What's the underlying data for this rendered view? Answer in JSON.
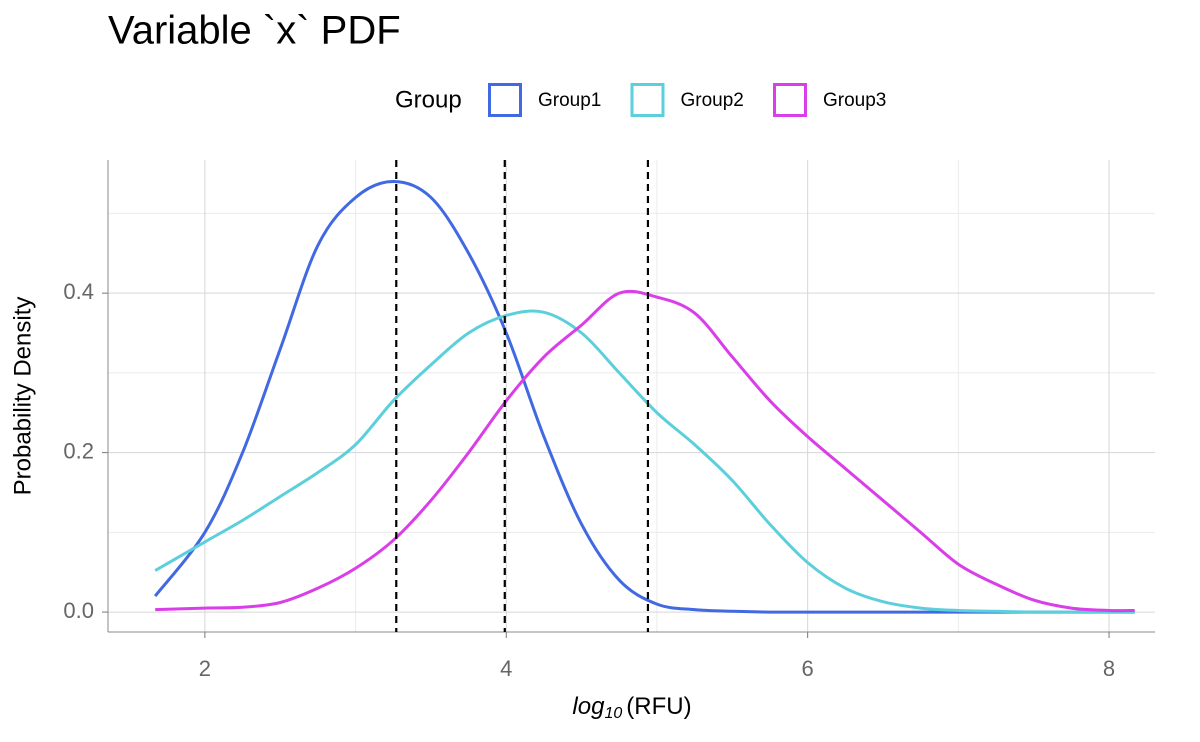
{
  "chart_data": {
    "type": "line",
    "title": "Variable `x` PDF",
    "xlabel": [
      "log",
      "10",
      "(RFU)"
    ],
    "ylabel": "Probability Density",
    "legend_title": "Group",
    "legend_position": "top",
    "x": [
      1.67,
      2.0,
      2.25,
      2.5,
      2.75,
      3.0,
      3.25,
      3.5,
      3.75,
      4.0,
      4.25,
      4.5,
      4.75,
      5.0,
      5.25,
      5.5,
      5.75,
      6.0,
      6.25,
      6.5,
      6.75,
      7.0,
      7.25,
      7.5,
      7.75,
      8.0,
      8.17
    ],
    "series": [
      {
        "name": "Group1",
        "color": "#4169e1",
        "values": [
          0.02,
          0.1,
          0.2,
          0.33,
          0.46,
          0.52,
          0.54,
          0.52,
          0.45,
          0.35,
          0.22,
          0.11,
          0.04,
          0.01,
          0.003,
          0.001,
          0,
          0,
          0,
          0,
          0,
          0,
          0,
          0,
          0,
          0,
          0
        ]
      },
      {
        "name": "Group2",
        "color": "#5bcfdb",
        "values": [
          0.052,
          0.088,
          0.115,
          0.145,
          0.175,
          0.21,
          0.265,
          0.31,
          0.35,
          0.372,
          0.376,
          0.35,
          0.3,
          0.25,
          0.21,
          0.165,
          0.11,
          0.062,
          0.03,
          0.013,
          0.005,
          0.002,
          0.001,
          0,
          0,
          0,
          0
        ]
      },
      {
        "name": "Group3",
        "color": "#d93ee8",
        "values": [
          0.003,
          0.005,
          0.006,
          0.012,
          0.03,
          0.055,
          0.09,
          0.14,
          0.2,
          0.265,
          0.32,
          0.36,
          0.4,
          0.395,
          0.375,
          0.32,
          0.265,
          0.22,
          0.18,
          0.14,
          0.1,
          0.06,
          0.035,
          0.015,
          0.005,
          0.002,
          0.002
        ]
      }
    ],
    "vlines": [
      3.27,
      3.99,
      4.94
    ],
    "vline_color": "#000000",
    "xlim": [
      1.357,
      8.305
    ],
    "ylim": [
      -0.025,
      0.567
    ],
    "xticks": [
      2,
      4,
      6,
      8
    ],
    "yticks": [
      {
        "value": 0,
        "label": "0.0"
      },
      0.2,
      0.4
    ],
    "xminorticks": [
      3,
      5,
      7
    ],
    "yminorticks": [
      0.1,
      0.3,
      0.5
    ],
    "grid": true
  }
}
